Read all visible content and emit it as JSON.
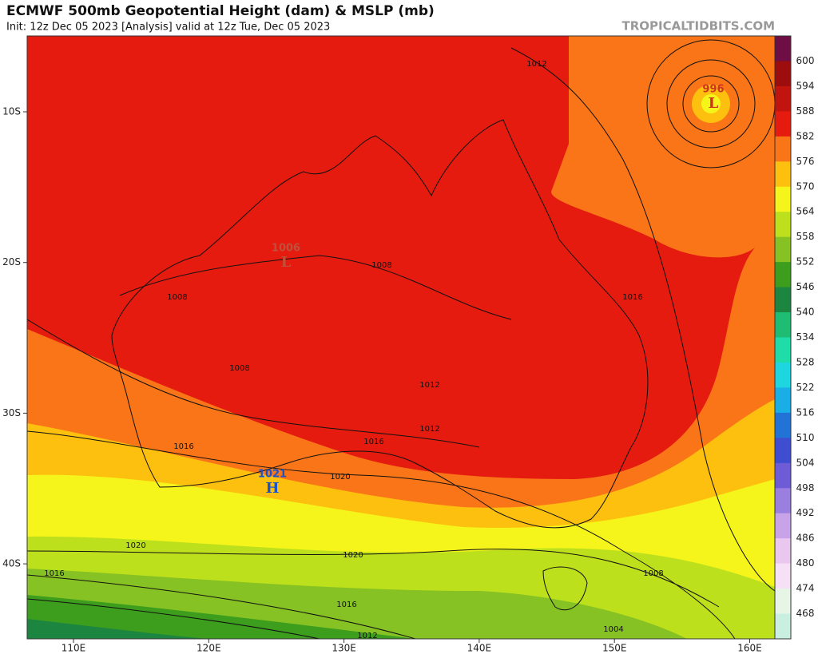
{
  "header": {
    "title": "ECMWF 500mb Geopotential Height (dam) & MSLP (mb)",
    "subtitle": "Init: 12z Dec 05 2023   [Analysis]   valid at 12z Tue, Dec 05 2023",
    "credit": "TROPICALTIDBITS.COM"
  },
  "colorbar": {
    "levels": [
      600,
      594,
      588,
      582,
      576,
      570,
      564,
      558,
      552,
      546,
      540,
      534,
      528,
      522,
      516,
      510,
      504,
      498,
      492,
      486,
      480,
      474,
      468
    ],
    "colors": [
      "#6e0e45",
      "#9e0d0d",
      "#c2140e",
      "#e51b10",
      "#f97517",
      "#fdc00f",
      "#f5f51b",
      "#bde01c",
      "#86c223",
      "#3d9e1d",
      "#1c8540",
      "#1fbd73",
      "#1edda8",
      "#1dd6e0",
      "#1aaee6",
      "#2174d6",
      "#3f4ed1",
      "#6d5cd6",
      "#9a7fe0",
      "#c8a3e8",
      "#e9c7ef",
      "#f5e0f5",
      "#e6f5e6",
      "#c9efe0"
    ]
  },
  "axes": {
    "latitudes": [
      "10S",
      "20S",
      "30S",
      "40S"
    ],
    "longitudes": [
      "110E",
      "120E",
      "130E",
      "140E",
      "150E",
      "160E"
    ]
  },
  "isobar_labels": [
    "1012",
    "1008",
    "1008",
    "1008",
    "1016",
    "1016",
    "1016",
    "1012",
    "1012",
    "1020",
    "1020",
    "1020",
    "1016",
    "1016",
    "1008",
    "1004",
    "1012"
  ],
  "pressure_centers": [
    {
      "value": "1006",
      "symbol": "L"
    },
    {
      "value": "1021",
      "symbol": "H"
    },
    {
      "value": "996",
      "symbol": "L"
    }
  ]
}
